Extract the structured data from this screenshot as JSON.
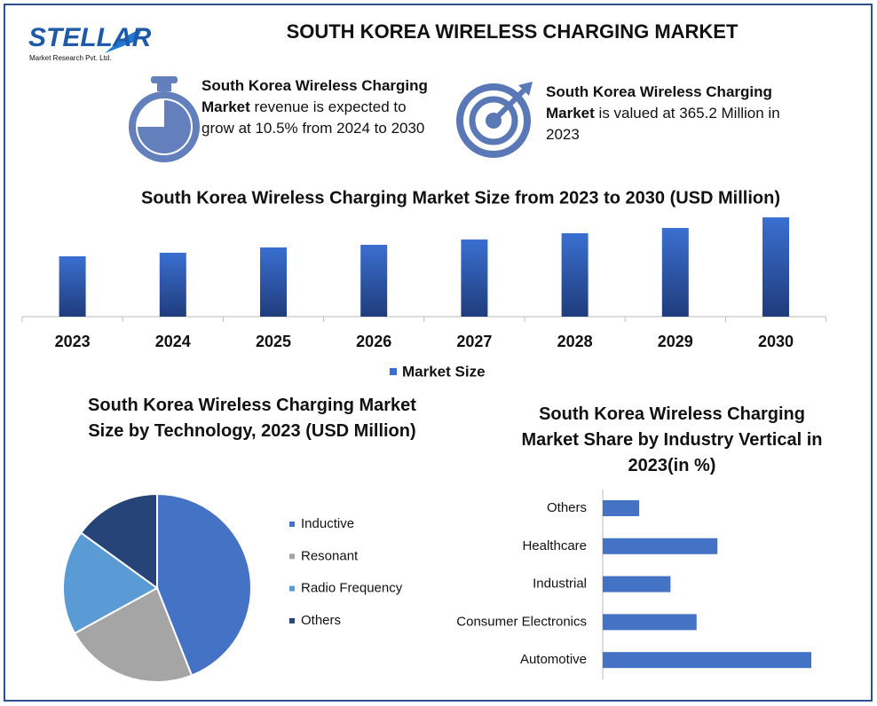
{
  "header": {
    "logo": {
      "name": "STELLAR",
      "tagline": "Market Research Pvt. Ltd."
    },
    "title": "SOUTH KOREA WIRELESS CHARGING MARKET",
    "info_boxes": [
      {
        "bold": "South Korea Wireless Charging Market",
        "text": " revenue is expected to grow at 10.5% from 2024 to 2030"
      },
      {
        "bold": "South Korea Wireless Charging Market",
        "text": " is valued at 365.2 Million in 2023"
      }
    ]
  },
  "chart_data": [
    {
      "type": "bar",
      "title": "South Korea Wireless Charging Market Size from 2023 to 2030 (USD Million)",
      "categories": [
        "2023",
        "2024",
        "2025",
        "2026",
        "2027",
        "2028",
        "2029",
        "2030"
      ],
      "series": [
        {
          "name": "Market Size",
          "color": "#3a6fd0",
          "values": [
            365.2,
            387,
            419,
            435,
            467,
            505,
            537,
            601
          ]
        }
      ]
    },
    {
      "type": "pie",
      "title": "South Korea Wireless Charging Market Size by Technology, 2023 (USD Million)",
      "categories": [
        "Inductive",
        "Resonant",
        "Radio Frequency",
        "Others"
      ],
      "values": [
        44,
        23,
        18,
        15
      ],
      "colors": [
        "#4472c4",
        "#a5a5a5",
        "#5b9bd5",
        "#264478"
      ]
    },
    {
      "type": "hbar",
      "title": "South Korea Wireless Charging Market Share by Industry Vertical in 2023(in %)",
      "categories": [
        "Others",
        "Healthcare",
        "Industrial",
        "Consumer Electronics",
        "Automotive"
      ],
      "values": [
        7,
        22,
        13,
        18,
        40
      ],
      "color": "#4472c4"
    }
  ]
}
